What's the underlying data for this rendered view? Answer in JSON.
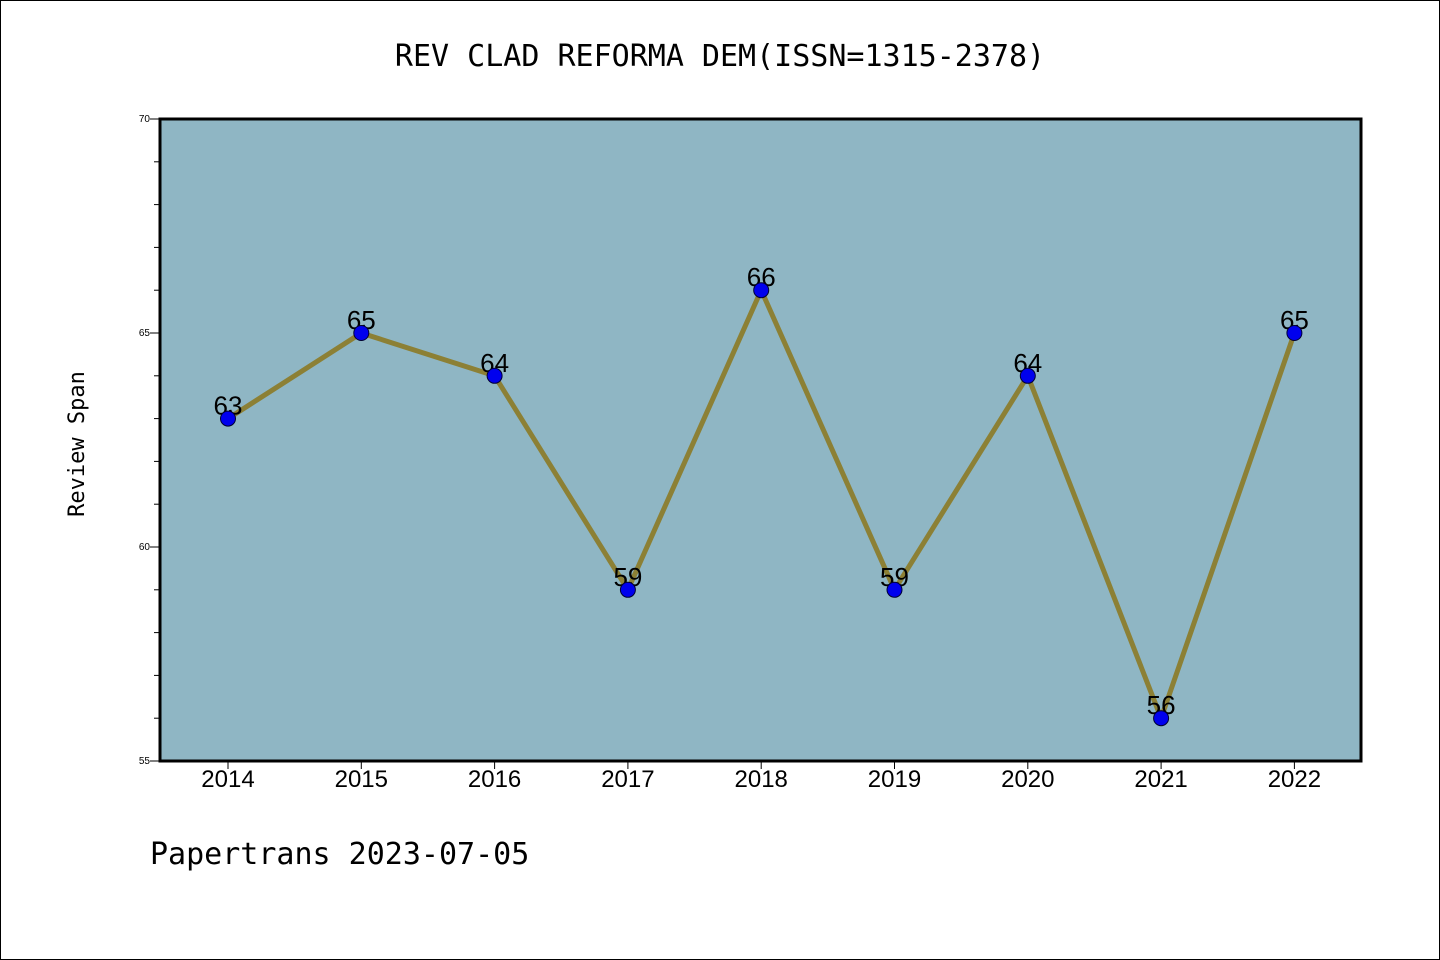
{
  "chart_data": {
    "type": "line",
    "title": "REV CLAD REFORMA DEM(ISSN=1315-2378)",
    "xlabel": "",
    "ylabel": "Review Span",
    "x": [
      "2014",
      "2015",
      "2016",
      "2017",
      "2018",
      "2019",
      "2020",
      "2021",
      "2022"
    ],
    "values": [
      63,
      65,
      64,
      59,
      66,
      59,
      64,
      56,
      65
    ],
    "data_labels": [
      "63",
      "65",
      "64",
      "59",
      "66",
      "59",
      "64",
      "56",
      "65"
    ],
    "ylim": [
      55,
      70
    ],
    "yticks": [
      "55",
      "60",
      "65",
      "70"
    ],
    "grid": false,
    "colors": {
      "plot_background": "#8fb6c4",
      "line": "#8c8035",
      "marker": "#0000ee"
    }
  },
  "footer": "Papertrans 2023-07-05"
}
